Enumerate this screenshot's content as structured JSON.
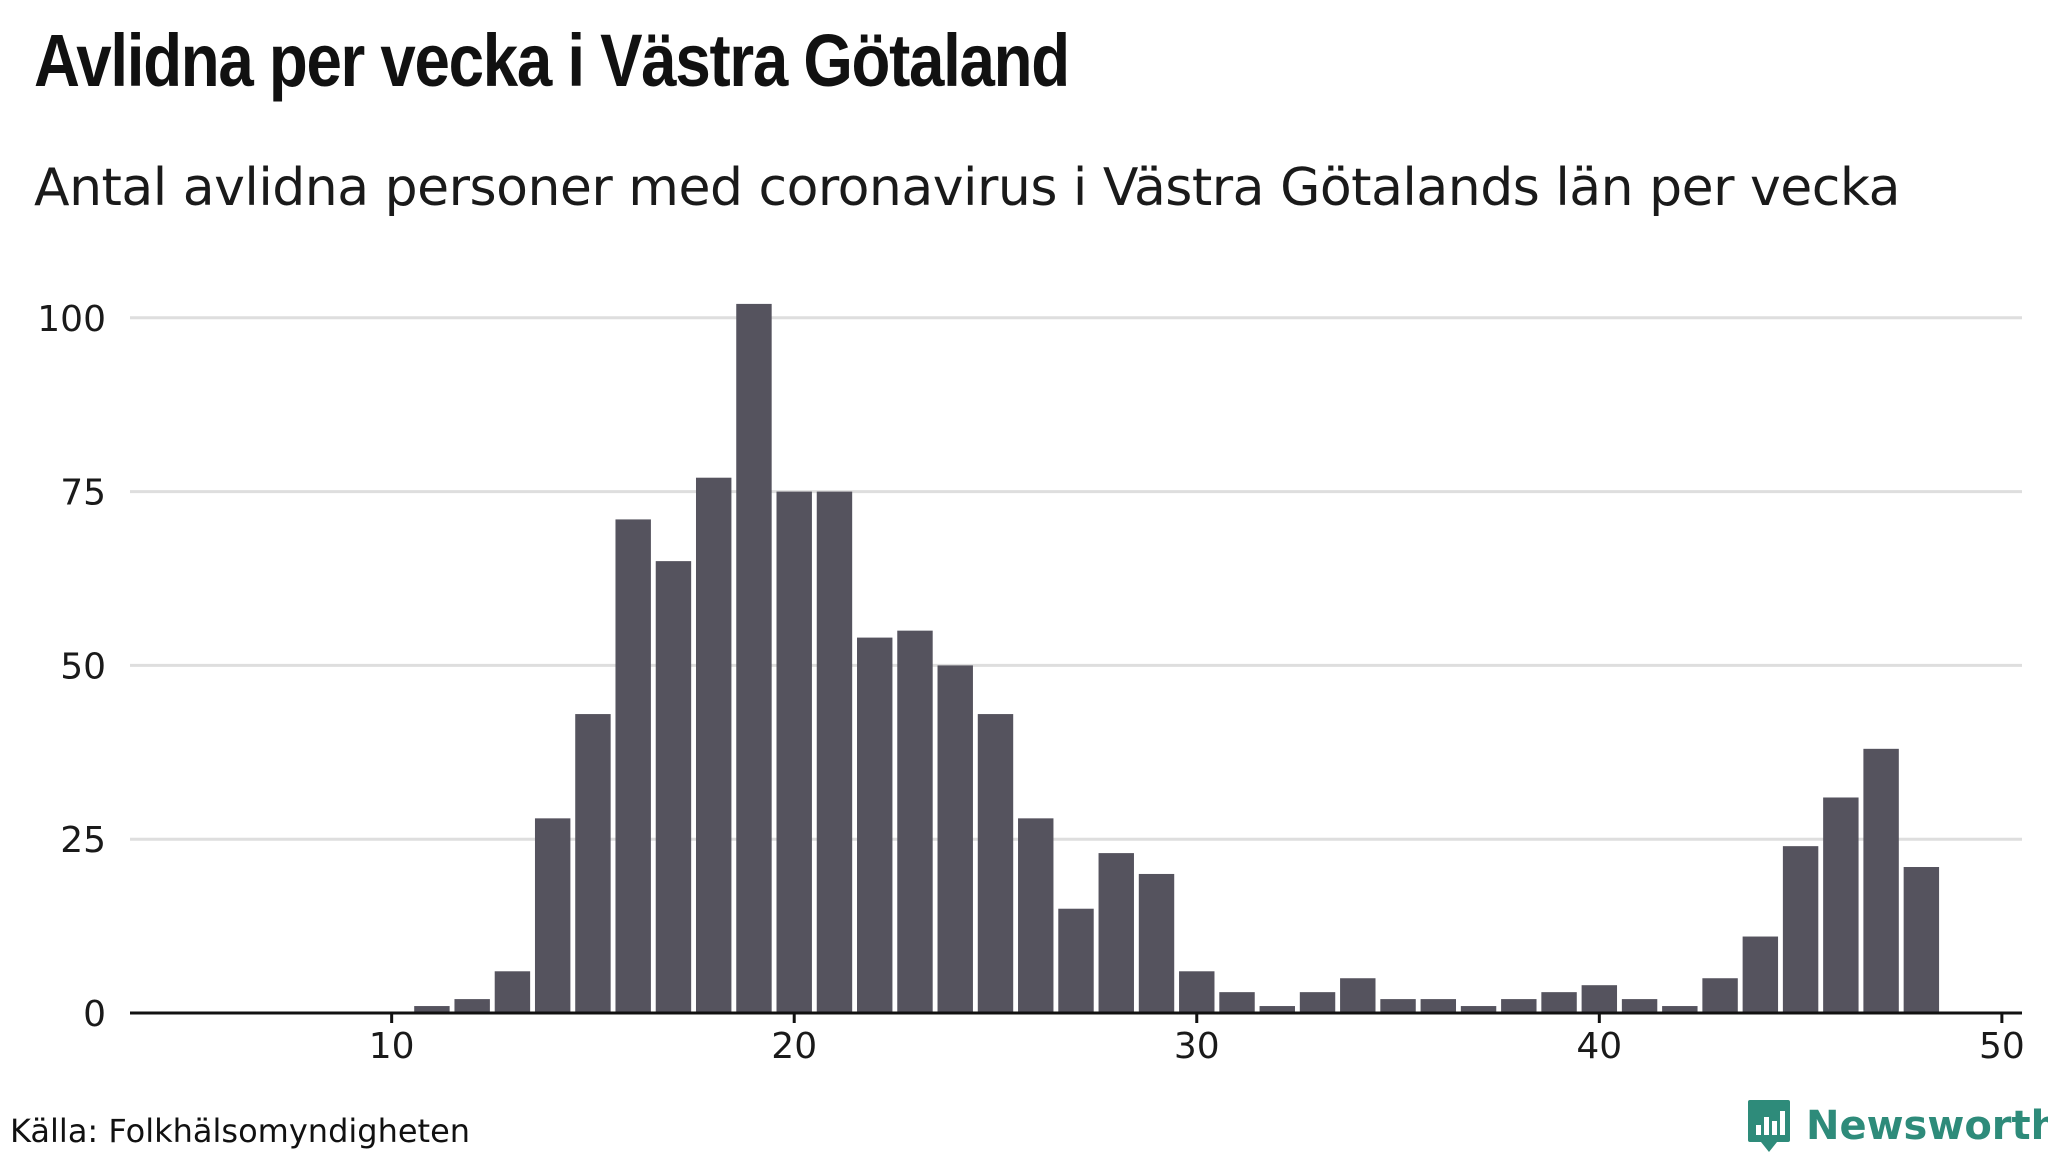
{
  "colors": {
    "bar": "#55535e",
    "grid": "#dedede",
    "axis": "#111111",
    "brand": "#2e8b7a"
  },
  "footer": {
    "source": "Källa: Folkhälsomyndigheten",
    "brand_name": "Newsworthy",
    "brand_icon": "bar-chart-pin-icon"
  },
  "chart_data": {
    "type": "bar",
    "title": "Avlidna per vecka i Västra Götaland",
    "subtitle": "Antal avlidna personer med coronavirus i Västra Götalands län per vecka",
    "xlabel": "",
    "ylabel": "",
    "xlim": [
      3.5,
      50.5
    ],
    "ylim": [
      0,
      104
    ],
    "xticks": [
      10,
      20,
      30,
      40,
      50
    ],
    "yticks": [
      0,
      25,
      50,
      75,
      100
    ],
    "grid": true,
    "legend": "none",
    "x": [
      11,
      12,
      13,
      14,
      15,
      16,
      17,
      18,
      19,
      20,
      21,
      22,
      23,
      24,
      25,
      26,
      27,
      28,
      29,
      30,
      31,
      32,
      33,
      34,
      35,
      36,
      37,
      38,
      39,
      40,
      41,
      42,
      43,
      44,
      45,
      46,
      47,
      48
    ],
    "values": [
      1,
      2,
      6,
      28,
      43,
      71,
      65,
      77,
      102,
      75,
      75,
      54,
      55,
      50,
      43,
      28,
      15,
      23,
      20,
      6,
      3,
      1,
      3,
      5,
      2,
      2,
      1,
      2,
      3,
      4,
      2,
      1,
      5,
      11,
      24,
      31,
      38,
      21
    ]
  }
}
